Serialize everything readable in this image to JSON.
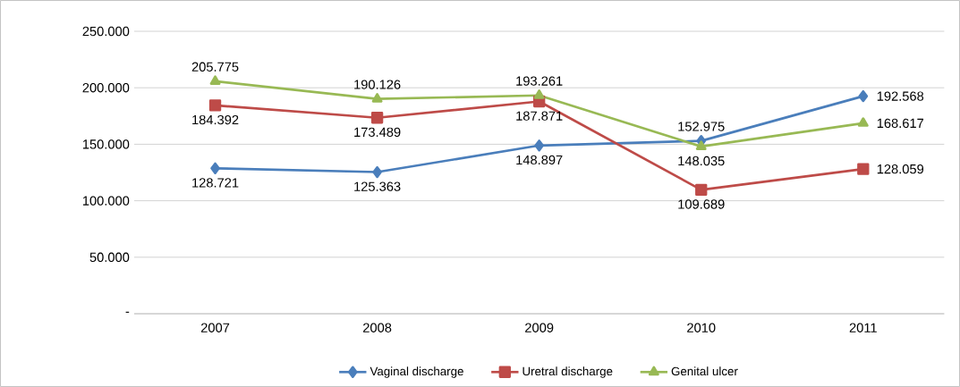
{
  "chart_data": {
    "type": "line",
    "categories": [
      "2007",
      "2008",
      "2009",
      "2010",
      "2011"
    ],
    "series": [
      {
        "name": "Vaginal discharge",
        "color": "#4a7ebb",
        "marker": "diamond",
        "values": [
          128721,
          125363,
          148897,
          152975,
          192568
        ],
        "value_labels": [
          "128.721",
          "125.363",
          "148.897",
          "152.975",
          "192.568"
        ]
      },
      {
        "name": "Uretral discharge",
        "color": "#be4b48",
        "marker": "square",
        "values": [
          184392,
          173489,
          187871,
          109689,
          128059
        ],
        "value_labels": [
          "184.392",
          "173.489",
          "187.871",
          "109.689",
          "128.059"
        ]
      },
      {
        "name": "Genital ulcer",
        "color": "#98b954",
        "marker": "triangle",
        "values": [
          205775,
          190126,
          193261,
          148035,
          168617
        ],
        "value_labels": [
          "205.775",
          "190.126",
          "193.261",
          "148.035",
          "168.617"
        ]
      }
    ],
    "ylim": [
      0,
      250000
    ],
    "yticks": [
      {
        "value": 0,
        "label": "-"
      },
      {
        "value": 50000,
        "label": "50.000"
      },
      {
        "value": 100000,
        "label": "100.000"
      },
      {
        "value": 150000,
        "label": "150.000"
      },
      {
        "value": 200000,
        "label": "200.000"
      },
      {
        "value": 250000,
        "label": "250.000"
      }
    ],
    "grid": "y",
    "legend": "bottom",
    "line_style": "solid"
  }
}
